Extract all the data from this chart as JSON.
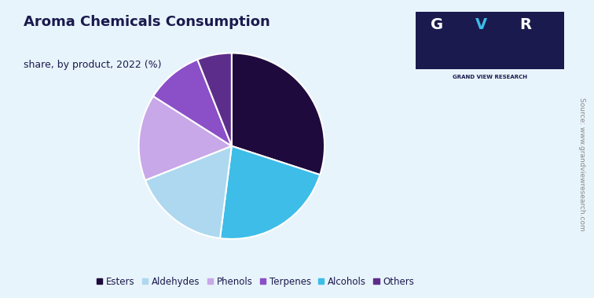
{
  "title": "Aroma Chemicals Consumption",
  "subtitle": "share, by product, 2022 (%)",
  "labels": [
    "Esters",
    "Alcohols",
    "Aldehydes",
    "Phenols",
    "Terpenes",
    "Others"
  ],
  "values": [
    30,
    22,
    17,
    15,
    10,
    6
  ],
  "colors": [
    "#1e0a3c",
    "#3dbde8",
    "#add8f0",
    "#c8a8e8",
    "#8b4fc8",
    "#5c2d8a"
  ],
  "legend_colors": [
    "#1e0a3c",
    "#add8f0",
    "#c8a8e8",
    "#8b4fc8",
    "#3dbde8",
    "#5c2d8a"
  ],
  "legend_labels": [
    "Esters",
    "Aldehydes",
    "Phenols",
    "Terpenes",
    "Alcohols",
    "Others"
  ],
  "background_color": "#e8f4fb",
  "title_color": "#1a1a4e",
  "subtitle_color": "#1a1a4e",
  "startangle": 90,
  "source_text": "Source: www.grandviewresearch.com"
}
